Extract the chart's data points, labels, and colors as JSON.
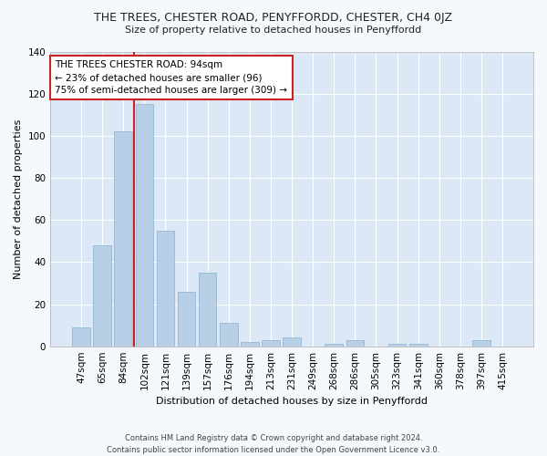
{
  "title": "THE TREES, CHESTER ROAD, PENYFFORDD, CHESTER, CH4 0JZ",
  "subtitle": "Size of property relative to detached houses in Penyffordd",
  "xlabel": "Distribution of detached houses by size in Penyffordd",
  "ylabel": "Number of detached properties",
  "categories": [
    "47sqm",
    "65sqm",
    "84sqm",
    "102sqm",
    "121sqm",
    "139sqm",
    "157sqm",
    "176sqm",
    "194sqm",
    "213sqm",
    "231sqm",
    "249sqm",
    "268sqm",
    "286sqm",
    "305sqm",
    "323sqm",
    "341sqm",
    "360sqm",
    "378sqm",
    "397sqm",
    "415sqm"
  ],
  "values": [
    9,
    48,
    102,
    115,
    55,
    26,
    35,
    11,
    2,
    3,
    4,
    0,
    1,
    3,
    0,
    1,
    1,
    0,
    0,
    3,
    0
  ],
  "bar_color": "#b8cfe8",
  "bar_edge_color": "#8ab0cc",
  "vline_color": "#cc2222",
  "annotation_text": "THE TREES CHESTER ROAD: 94sqm\n← 23% of detached houses are smaller (96)\n75% of semi-detached houses are larger (309) →",
  "annotation_box_color": "#ffffff",
  "annotation_box_edge": "#cc2222",
  "ylim": [
    0,
    140
  ],
  "yticks": [
    0,
    20,
    40,
    60,
    80,
    100,
    120,
    140
  ],
  "fig_background_color": "#f5f8fc",
  "ax_background_color": "#dce8f5",
  "grid_color": "#ffffff",
  "footer": "Contains HM Land Registry data © Crown copyright and database right 2024.\nContains public sector information licensed under the Open Government Licence v3.0."
}
